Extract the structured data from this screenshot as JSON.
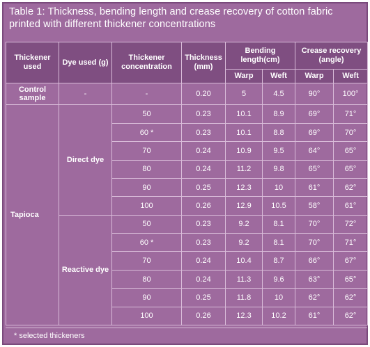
{
  "title": "Table 1: Thickness, bending length and crease recovery of cotton fabric printed with different thickener concentrations",
  "headers": {
    "thickener_used": "Thickener used",
    "dye_used": "Dye used (g)",
    "thickener_concentration": "Thickener concentration",
    "thickness": "Thickness (mm)",
    "bending_length": "Bending length(cm)",
    "crease_recovery": "Crease recovery (angle)",
    "warp": "Warp",
    "weft": "Weft"
  },
  "control": {
    "label": "Control sample",
    "dye": "-",
    "concentration": "-",
    "thickness": "0.20",
    "bend_warp": "5",
    "bend_weft": "4.5",
    "crease_warp": "90°",
    "crease_weft": "100°"
  },
  "thickener_name": "Tapioca",
  "groups": [
    {
      "dye": "Direct dye",
      "rows": [
        {
          "concentration": "50",
          "thickness": "0.23",
          "bend_warp": "10.1",
          "bend_weft": "8.9",
          "crease_warp": "69°",
          "crease_weft": "71°"
        },
        {
          "concentration": "60 *",
          "thickness": "0.23",
          "bend_warp": "10.1",
          "bend_weft": "8.8",
          "crease_warp": "69°",
          "crease_weft": "70°"
        },
        {
          "concentration": "70",
          "thickness": "0.24",
          "bend_warp": "10.9",
          "bend_weft": "9.5",
          "crease_warp": "64°",
          "crease_weft": "65°"
        },
        {
          "concentration": "80",
          "thickness": "0.24",
          "bend_warp": "11.2",
          "bend_weft": "9.8",
          "crease_warp": "65°",
          "crease_weft": "65°"
        },
        {
          "concentration": "90",
          "thickness": "0.25",
          "bend_warp": "12.3",
          "bend_weft": "10",
          "crease_warp": "61°",
          "crease_weft": "62°"
        },
        {
          "concentration": "100",
          "thickness": "0.26",
          "bend_warp": "12.9",
          "bend_weft": "10.5",
          "crease_warp": "58°",
          "crease_weft": "61°"
        }
      ]
    },
    {
      "dye": "Reactive dye",
      "rows": [
        {
          "concentration": "50",
          "thickness": "0.23",
          "bend_warp": "9.2",
          "bend_weft": "8.1",
          "crease_warp": "70°",
          "crease_weft": "72°"
        },
        {
          "concentration": "60 *",
          "thickness": "0.23",
          "bend_warp": "9.2",
          "bend_weft": "8.1",
          "crease_warp": "70°",
          "crease_weft": "71°"
        },
        {
          "concentration": "70",
          "thickness": "0.24",
          "bend_warp": "10.4",
          "bend_weft": "8.7",
          "crease_warp": "66°",
          "crease_weft": "67°"
        },
        {
          "concentration": "80",
          "thickness": "0.24",
          "bend_warp": "11.3",
          "bend_weft": "9.6",
          "crease_warp": "63°",
          "crease_weft": "65°"
        },
        {
          "concentration": "90",
          "thickness": "0.25",
          "bend_warp": "11.8",
          "bend_weft": "10",
          "crease_warp": "62°",
          "crease_weft": "62°"
        },
        {
          "concentration": "100",
          "thickness": "0.26",
          "bend_warp": "12.3",
          "bend_weft": "10.2",
          "crease_warp": "61°",
          "crease_weft": "62°"
        }
      ]
    }
  ],
  "footnote": "* selected thickeners",
  "colors": {
    "background": "#9e6a9e",
    "header": "#7f4e81",
    "grid": "#d9bcd9",
    "text": "#ffffff"
  }
}
